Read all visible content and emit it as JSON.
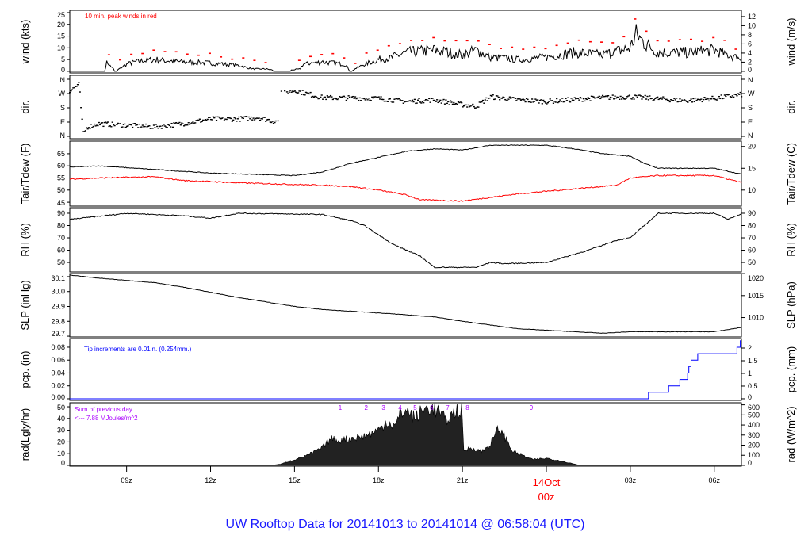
{
  "title": "UW Rooftop Data for 20141013  to  20141014 @ 06:58:04  (UTC)",
  "colors": {
    "line": "#000000",
    "peak": "#ff0000",
    "dew": "#ff0000",
    "pcp": "#0000ff",
    "sun": "#aa00ff",
    "title": "#1a1aff",
    "date": "#ff0000"
  },
  "chart_data": {
    "type": "line",
    "xlim_hours_from_13Oct00z": [
      6.97,
      30.97
    ],
    "x_ticks": [
      {
        "h": 9,
        "label": "09z"
      },
      {
        "h": 12,
        "label": "12z"
      },
      {
        "h": 15,
        "label": "15z"
      },
      {
        "h": 18,
        "label": "18z"
      },
      {
        "h": 21,
        "label": "21z"
      },
      {
        "h": 24,
        "label": "00z",
        "date": "14Oct",
        "highlight": true
      },
      {
        "h": 27,
        "label": "03z"
      },
      {
        "h": 30,
        "label": "06z"
      }
    ],
    "panels": [
      {
        "id": "wind",
        "ylabel": "wind (kts)",
        "ylabel_right": "wind (m/s)",
        "ylim": [
          -0.7,
          26
        ],
        "ticks": [
          0,
          5,
          10,
          15,
          20,
          25
        ],
        "right_ticks": [
          0,
          2,
          4,
          6,
          8,
          10,
          12
        ],
        "right_factor": 0.5144,
        "right_offset": 0,
        "annotation": "10 min. peak winds in red",
        "mean": [
          [
            7,
            0
          ],
          [
            8.2,
            0
          ],
          [
            8.3,
            4
          ],
          [
            8.6,
            0
          ],
          [
            9,
            3
          ],
          [
            9.3,
            4
          ],
          [
            10,
            5
          ],
          [
            11,
            4
          ],
          [
            12,
            3.5
          ],
          [
            13,
            2.5
          ],
          [
            13.5,
            1
          ],
          [
            14,
            1
          ],
          [
            14.5,
            0
          ],
          [
            15.2,
            1
          ],
          [
            15.3,
            3
          ],
          [
            16,
            4
          ],
          [
            16.8,
            3
          ],
          [
            17,
            0
          ],
          [
            17.5,
            3
          ],
          [
            18,
            5
          ],
          [
            18.5,
            6
          ],
          [
            19,
            8
          ],
          [
            20,
            9
          ],
          [
            21,
            7
          ],
          [
            21.5,
            9
          ],
          [
            22,
            6
          ],
          [
            23,
            5
          ],
          [
            24,
            6
          ],
          [
            25,
            8
          ],
          [
            26,
            7
          ],
          [
            27,
            10
          ],
          [
            27.2,
            16
          ],
          [
            27.5,
            12
          ],
          [
            28,
            8
          ],
          [
            29,
            8
          ],
          [
            30,
            9
          ],
          [
            31,
            5
          ]
        ]
      },
      {
        "id": "dir",
        "ylabel": "dir.",
        "ylabel_right": "dir.",
        "ylim": [
          -15,
          385
        ],
        "ticks": [
          0,
          90,
          180,
          270,
          360
        ],
        "tick_labels": [
          "N",
          "E",
          "S",
          "W",
          "N"
        ],
        "right_tick_labels": [
          "N",
          "E",
          "S",
          "W",
          "N"
        ],
        "dir": [
          [
            7,
            290
          ],
          [
            7.3,
            330
          ],
          [
            7.45,
            15
          ],
          [
            7.6,
            60
          ],
          [
            8,
            80
          ],
          [
            9,
            70
          ],
          [
            10,
            60
          ],
          [
            11,
            80
          ],
          [
            12,
            110
          ],
          [
            13,
            110
          ],
          [
            13.7,
            120
          ],
          [
            14.4,
            90
          ],
          [
            14.5,
            270
          ],
          [
            15,
            290
          ],
          [
            16,
            245
          ],
          [
            18,
            240
          ],
          [
            19,
            220
          ],
          [
            20,
            230
          ],
          [
            21,
            200
          ],
          [
            21.5,
            190
          ],
          [
            22,
            250
          ],
          [
            23,
            230
          ],
          [
            24,
            220
          ],
          [
            26,
            245
          ],
          [
            27,
            250
          ],
          [
            29,
            225
          ],
          [
            30,
            240
          ],
          [
            31,
            265
          ]
        ]
      },
      {
        "id": "temp",
        "ylabel": "Tair/Tdew (F)",
        "ylabel_right": "Tair/Tdew (C)",
        "ylim": [
          43.4,
          70.2
        ],
        "ticks": [
          45,
          50,
          55,
          60,
          65
        ],
        "right_ticks": [
          10,
          15,
          20
        ],
        "right_factor": 0.5556,
        "right_offset": -17.78,
        "tair": [
          [
            7,
            59.5
          ],
          [
            8,
            60
          ],
          [
            10,
            58.5
          ],
          [
            12,
            57
          ],
          [
            15,
            56
          ],
          [
            16,
            57.5
          ],
          [
            17,
            61
          ],
          [
            18,
            63.5
          ],
          [
            19,
            66
          ],
          [
            20,
            67
          ],
          [
            21,
            66.5
          ],
          [
            22,
            68.5
          ],
          [
            24,
            68.5
          ],
          [
            25,
            67
          ],
          [
            26,
            65
          ],
          [
            27,
            64
          ],
          [
            27.5,
            61
          ],
          [
            28,
            59
          ],
          [
            30,
            59
          ],
          [
            31,
            56.5
          ]
        ],
        "tdew": [
          [
            7,
            54.5
          ],
          [
            8,
            55
          ],
          [
            10,
            55.5
          ],
          [
            11,
            54
          ],
          [
            13,
            53
          ],
          [
            16,
            52
          ],
          [
            17,
            51.5
          ],
          [
            18,
            50
          ],
          [
            19,
            48
          ],
          [
            19.5,
            46
          ],
          [
            21,
            45.5
          ],
          [
            22,
            47
          ],
          [
            23,
            48.5
          ],
          [
            24,
            49.5
          ],
          [
            25.5,
            51
          ],
          [
            26.5,
            52
          ],
          [
            27,
            55
          ],
          [
            28,
            56
          ],
          [
            30,
            56
          ],
          [
            31,
            53
          ]
        ]
      },
      {
        "id": "rh",
        "ylabel": "RH (%)",
        "ylabel_right": "RH (%)",
        "ylim": [
          42.3,
          94.5
        ],
        "ticks": [
          50,
          60,
          70,
          80,
          90
        ],
        "right_ticks": [
          50,
          60,
          70,
          80,
          90
        ],
        "right_factor": 1,
        "right_offset": 0,
        "rh": [
          [
            7,
            85
          ],
          [
            9,
            90
          ],
          [
            11,
            88
          ],
          [
            12,
            86
          ],
          [
            13,
            90
          ],
          [
            16,
            89
          ],
          [
            17,
            84
          ],
          [
            17.5,
            80
          ],
          [
            18.5,
            65
          ],
          [
            19.5,
            55
          ],
          [
            20,
            46
          ],
          [
            21.5,
            46
          ],
          [
            22,
            50
          ],
          [
            22.5,
            49
          ],
          [
            24,
            50
          ],
          [
            25.5,
            60
          ],
          [
            26.5,
            68
          ],
          [
            27,
            70
          ],
          [
            27.5,
            80
          ],
          [
            28,
            90
          ],
          [
            30,
            90
          ],
          [
            30.5,
            85
          ],
          [
            31,
            90
          ]
        ]
      },
      {
        "id": "slp",
        "ylabel": "SLP (inHg)",
        "ylabel_right": "SLP (hPa)",
        "ylim": [
          29.695,
          30.121
        ],
        "ticks": [
          29.7,
          29.8,
          29.9,
          30.0,
          30.1
        ],
        "tick_labels": [
          "29.7",
          "29.8",
          "29.9",
          "30.0",
          "30.1"
        ],
        "right_ticks": [
          1010,
          1015,
          1020
        ],
        "right_factor": 33.8639,
        "right_offset": 0,
        "slp": [
          [
            7,
            30.11
          ],
          [
            8,
            30.09
          ],
          [
            10,
            30.06
          ],
          [
            11,
            30.03
          ],
          [
            13,
            29.96
          ],
          [
            15,
            29.9
          ],
          [
            16,
            29.88
          ],
          [
            18.5,
            29.85
          ],
          [
            20,
            29.83
          ],
          [
            21,
            29.8
          ],
          [
            23,
            29.75
          ],
          [
            25,
            29.73
          ],
          [
            26,
            29.72
          ],
          [
            27,
            29.73
          ],
          [
            30,
            29.73
          ],
          [
            31,
            29.76
          ]
        ]
      },
      {
        "id": "pcp",
        "ylabel": "pcp. (in)",
        "ylabel_right": "pcp. (mm)",
        "ylim": [
          -0.0025,
          0.0935
        ],
        "ticks": [
          0,
          0.02,
          0.04,
          0.06,
          0.08
        ],
        "tick_labels": [
          "0.00",
          "0.02",
          "0.04",
          "0.06",
          "0.08"
        ],
        "right_ticks": [
          0,
          0.5,
          1,
          1.5,
          2
        ],
        "right_factor": 25.4,
        "right_offset": 0,
        "annotation": "Tip increments are 0.01in. (0.254mm.)",
        "steps": [
          [
            6.97,
            0
          ],
          [
            27.62,
            0.01
          ],
          [
            28.36,
            0.02
          ],
          [
            28.75,
            0.03
          ],
          [
            29.03,
            0.04
          ],
          [
            29.06,
            0.05
          ],
          [
            29.15,
            0.06
          ],
          [
            29.37,
            0.07
          ],
          [
            30.81,
            0.08
          ],
          [
            30.9,
            0.09
          ]
        ]
      },
      {
        "id": "rad",
        "ylabel": "rad(Lgly/hr)",
        "ylabel_right": "rad (W/m^2)",
        "ylim": [
          -0.7,
          53.4
        ],
        "ticks": [
          0,
          10,
          20,
          30,
          40,
          50
        ],
        "right_ticks": [
          0,
          100,
          200,
          300,
          400,
          500,
          600
        ],
        "right_factor": 11.62,
        "right_offset": 0,
        "annotation_line1": "Sum of previous day",
        "annotation_line2": "<--- 7.88 MJoules/m^2",
        "sun_hours": [
          {
            "h": 16.63,
            "label": "1"
          },
          {
            "h": 17.56,
            "label": "2"
          },
          {
            "h": 18.18,
            "label": "3"
          },
          {
            "h": 18.77,
            "label": "4"
          },
          {
            "h": 19.31,
            "label": "5"
          },
          {
            "h": 19.9,
            "label": "6"
          },
          {
            "h": 20.47,
            "label": "7"
          },
          {
            "h": 21.18,
            "label": "8"
          },
          {
            "h": 23.46,
            "label": "9"
          }
        ],
        "rad": [
          [
            6.97,
            0
          ],
          [
            14.1,
            0
          ],
          [
            14.5,
            1
          ],
          [
            15,
            5
          ],
          [
            15.5,
            9
          ],
          [
            16,
            15
          ],
          [
            16.3,
            23
          ],
          [
            16.5,
            21
          ],
          [
            17,
            23
          ],
          [
            17.5,
            25
          ],
          [
            18,
            30
          ],
          [
            18.3,
            38
          ],
          [
            18.6,
            33
          ],
          [
            18.8,
            45
          ],
          [
            19,
            47
          ],
          [
            19.3,
            40
          ],
          [
            19.5,
            45
          ],
          [
            19.8,
            50
          ],
          [
            20.2,
            45
          ],
          [
            20.4,
            38
          ],
          [
            20.8,
            47
          ],
          [
            21,
            46
          ],
          [
            21.02,
            12
          ],
          [
            21.3,
            15
          ],
          [
            21.7,
            12
          ],
          [
            22,
            18
          ],
          [
            22.3,
            32
          ],
          [
            22.5,
            25
          ],
          [
            22.8,
            12
          ],
          [
            23.2,
            8
          ],
          [
            23.5,
            5
          ],
          [
            24,
            6
          ],
          [
            24.5,
            4
          ],
          [
            25.2,
            0
          ],
          [
            30.97,
            0
          ]
        ]
      }
    ]
  }
}
